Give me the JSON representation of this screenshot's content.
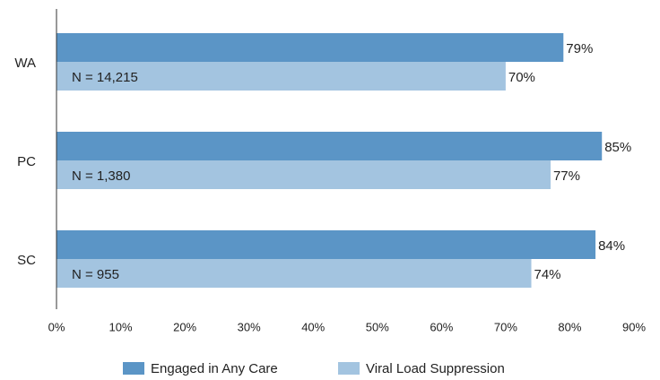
{
  "chart_data": {
    "type": "hbar",
    "categories": [
      "WA",
      "PC",
      "SC"
    ],
    "annotations": [
      "N = 14,215",
      "N = 1,380",
      "N = 955"
    ],
    "series": [
      {
        "name": "Engaged in Any Care",
        "color": "#5b95c6",
        "values": [
          79,
          85,
          84
        ],
        "value_labels": [
          "79%",
          "85%",
          "84%"
        ]
      },
      {
        "name": "Viral Load Suppression",
        "color": "#a3c4e0",
        "values": [
          70,
          77,
          74
        ],
        "value_labels": [
          "70%",
          "77%",
          "74%"
        ]
      }
    ],
    "xlim": [
      0,
      90
    ],
    "xticks": [
      {
        "value": 0,
        "label": "0%"
      },
      {
        "value": 10,
        "label": "10%"
      },
      {
        "value": 20,
        "label": "20%"
      },
      {
        "value": 30,
        "label": "30%"
      },
      {
        "value": 40,
        "label": "40%"
      },
      {
        "value": 50,
        "label": "50%"
      },
      {
        "value": 60,
        "label": "60%"
      },
      {
        "value": 70,
        "label": "70%"
      },
      {
        "value": 80,
        "label": "80%"
      },
      {
        "value": 90,
        "label": "90%"
      }
    ],
    "legend": "bottom"
  }
}
